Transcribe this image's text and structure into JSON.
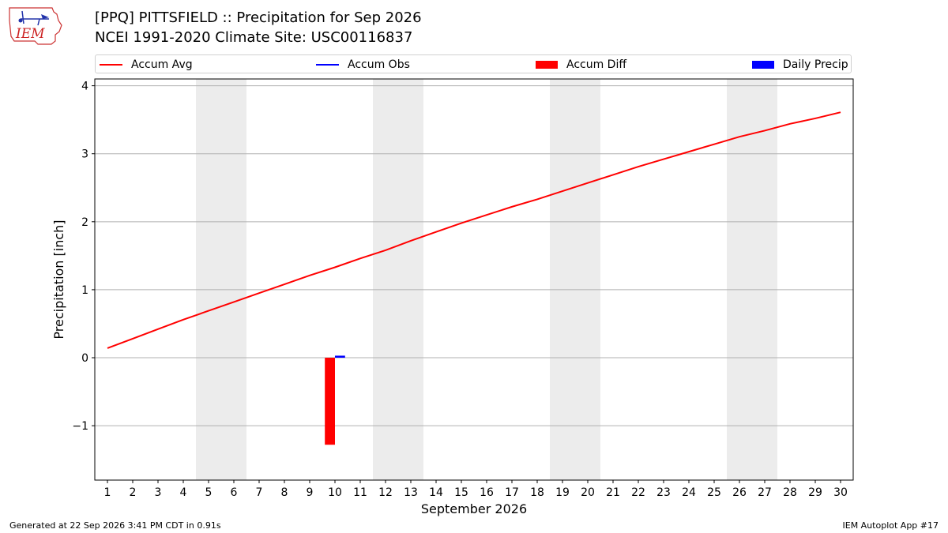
{
  "header": {
    "logo_text": "IEM",
    "title_line1": "[PPQ] PITTSFIELD :: Precipitation for Sep 2026",
    "title_line2": "NCEI 1991-2020 Climate Site: USC00116837"
  },
  "legend": {
    "items": [
      {
        "label": "Accum Avg",
        "kind": "line",
        "color": "#ff0000"
      },
      {
        "label": "Accum Obs",
        "kind": "line",
        "color": "#0000ff"
      },
      {
        "label": "Accum Diff",
        "kind": "patch",
        "color": "#ff0000"
      },
      {
        "label": "Daily Precip",
        "kind": "patch",
        "color": "#0000ff"
      }
    ]
  },
  "footer": {
    "left": "Generated at 22 Sep 2026 3:41 PM CDT in 0.91s",
    "right": "IEM Autoplot App #17"
  },
  "chart_data": {
    "type": "line",
    "xlabel": "September 2026",
    "ylabel": "Precipitation [inch]",
    "x": [
      1,
      2,
      3,
      4,
      5,
      6,
      7,
      8,
      9,
      10,
      11,
      12,
      13,
      14,
      15,
      16,
      17,
      18,
      19,
      20,
      21,
      22,
      23,
      24,
      25,
      26,
      27,
      28,
      29,
      30
    ],
    "xlim": [
      0.5,
      30.5
    ],
    "ylim": [
      -1.8,
      4.1
    ],
    "yticks": [
      -1,
      0,
      1,
      2,
      3,
      4
    ],
    "ytick_labels": [
      "−1",
      "0",
      "1",
      "2",
      "3",
      "4"
    ],
    "grid": "horizontal",
    "legend_position": "top",
    "weekend_shading": [
      [
        5,
        6
      ],
      [
        12,
        13
      ],
      [
        19,
        20
      ],
      [
        26,
        27
      ]
    ],
    "series": [
      {
        "name": "Accum Avg",
        "kind": "line",
        "color": "#ff0000",
        "x": [
          1,
          2,
          3,
          4,
          5,
          6,
          7,
          8,
          9,
          10,
          11,
          12,
          13,
          14,
          15,
          16,
          17,
          18,
          19,
          20,
          21,
          22,
          23,
          24,
          25,
          26,
          27,
          28,
          29,
          30
        ],
        "values": [
          0.14,
          0.28,
          0.42,
          0.56,
          0.69,
          0.82,
          0.95,
          1.08,
          1.21,
          1.33,
          1.46,
          1.58,
          1.72,
          1.85,
          1.98,
          2.1,
          2.22,
          2.33,
          2.45,
          2.57,
          2.69,
          2.81,
          2.92,
          3.03,
          3.14,
          3.25,
          3.34,
          3.44,
          3.52,
          3.61
        ]
      },
      {
        "name": "Accum Obs",
        "kind": "line",
        "color": "#0000ff",
        "x": [],
        "values": []
      },
      {
        "name": "Accum Diff",
        "kind": "bar",
        "color": "#ff0000",
        "x": [
          10
        ],
        "values": [
          -1.28
        ]
      },
      {
        "name": "Daily Precip",
        "kind": "bar",
        "color": "#0000ff",
        "x": [
          10
        ],
        "values": [
          0.03
        ]
      }
    ]
  }
}
